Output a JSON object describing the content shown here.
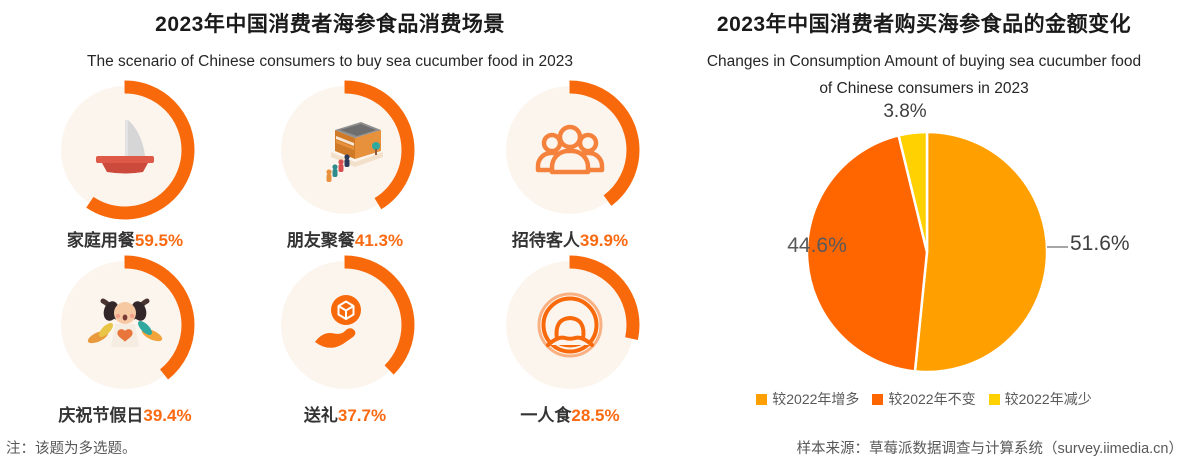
{
  "left_panel": {
    "title": "2023年中国消费者海参食品消费场景",
    "subtitle": "The scenario of Chinese consumers to buy sea cucumber food in 2023",
    "scenarios": [
      {
        "label": "家庭用餐",
        "value": "59.5%",
        "icon": "covered-dish-icon"
      },
      {
        "label": "朋友聚餐",
        "value": "41.3%",
        "icon": "restaurant-queue-icon"
      },
      {
        "label": "招待客人",
        "value": "39.9%",
        "icon": "guests-group-icon"
      },
      {
        "label": "庆祝节假日",
        "value": "39.4%",
        "icon": "celebration-icon"
      },
      {
        "label": "送礼",
        "value": "37.7%",
        "icon": "gift-hand-icon"
      },
      {
        "label": "一人食",
        "value": "28.5%",
        "icon": "solo-diner-icon"
      }
    ],
    "note": "注：该题为多选题。"
  },
  "right_panel": {
    "title": "2023年中国消费者购买海参食品的金额变化",
    "subtitle_line1": "Changes in Consumption Amount of buying sea cucumber food",
    "subtitle_line2": "of Chinese consumers in 2023",
    "source": "样本来源：草莓派数据调查与计算系统（survey.iimedia.cn）"
  },
  "chart_data": [
    {
      "type": "donut",
      "title": "2023年中国消费者海参食品消费场景",
      "subtitle": "The scenario of Chinese consumers to buy sea cucumber food in 2023",
      "categories": [
        "家庭用餐",
        "朋友聚餐",
        "招待客人",
        "庆祝节假日",
        "送礼",
        "一人食"
      ],
      "values": [
        59.5,
        41.3,
        39.9,
        39.4,
        37.7,
        28.5
      ],
      "unit": "%",
      "ring_color": "#F8690B",
      "ring_bg_color": "#FCF5EE"
    },
    {
      "type": "pie",
      "title": "2023年中国消费者购买海参食品的金额变化",
      "categories": [
        "较2022年增多",
        "较2022年不变",
        "较2022年减少"
      ],
      "values": [
        51.6,
        44.6,
        3.8
      ],
      "value_labels": [
        "51.6%",
        "44.6%",
        "3.8%"
      ],
      "colors": [
        "#FFA000",
        "#FF6600",
        "#FFD100"
      ],
      "legend_position": "bottom",
      "start_angle": "top",
      "direction": "clockwise"
    }
  ]
}
